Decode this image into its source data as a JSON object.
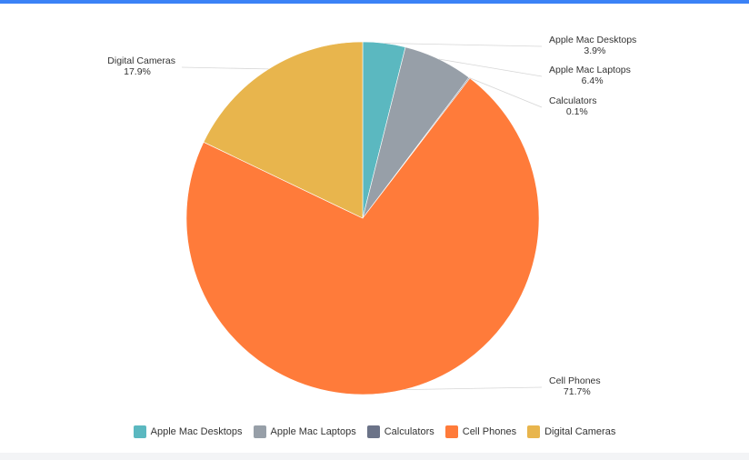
{
  "chart_data": {
    "type": "pie",
    "series": [
      {
        "name": "Apple Mac Desktops",
        "value": 3.9,
        "label": "3.9%",
        "color": "#5bb8c0"
      },
      {
        "name": "Apple Mac Laptops",
        "value": 6.4,
        "label": "6.4%",
        "color": "#979fa8"
      },
      {
        "name": "Calculators",
        "value": 0.1,
        "label": "0.1%",
        "color": "#6b7388"
      },
      {
        "name": "Cell Phones",
        "value": 71.7,
        "label": "71.7%",
        "color": "#ff7b3a"
      },
      {
        "name": "Digital Cameras",
        "value": 17.9,
        "label": "17.9%",
        "color": "#e8b54d"
      }
    ],
    "legend_position": "bottom"
  }
}
